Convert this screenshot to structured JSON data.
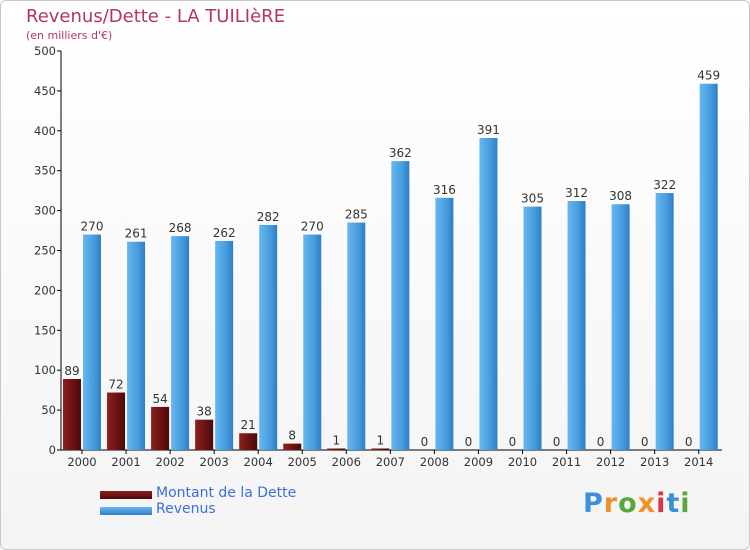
{
  "title": "Revenus/Dette - LA TUILIèRE",
  "subtitle": "(en milliers d'€)",
  "colors": {
    "debt": "#7a1818",
    "revenue": "#4a9fe0",
    "title": "#b5336a",
    "legend": "#3d6fd8"
  },
  "legend": {
    "debt_label": "Montant de la Dette",
    "revenue_label": "Revenus"
  },
  "logo": {
    "text": "Proxiti"
  },
  "chart_data": {
    "type": "bar",
    "categories": [
      "2000",
      "2001",
      "2002",
      "2003",
      "2004",
      "2005",
      "2006",
      "2007",
      "2008",
      "2009",
      "2010",
      "2011",
      "2012",
      "2013",
      "2014"
    ],
    "series": [
      {
        "name": "Montant de la Dette",
        "values": [
          89,
          72,
          54,
          38,
          21,
          8,
          1,
          1,
          0,
          0,
          0,
          0,
          0,
          0,
          0
        ]
      },
      {
        "name": "Revenus",
        "values": [
          270,
          261,
          268,
          262,
          282,
          270,
          285,
          362,
          316,
          391,
          305,
          312,
          308,
          322,
          459
        ]
      }
    ],
    "ylim": [
      0,
      500
    ],
    "yticks": [
      0,
      50,
      100,
      150,
      200,
      250,
      300,
      350,
      400,
      450,
      500
    ],
    "grid": false,
    "legend_position": "bottom-left"
  }
}
